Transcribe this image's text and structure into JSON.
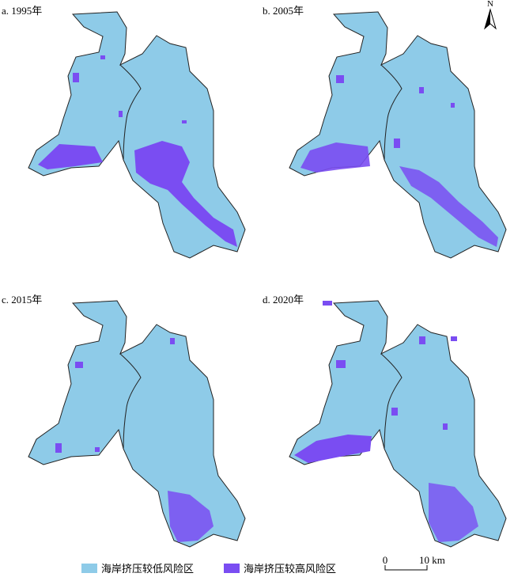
{
  "panels": [
    {
      "label": "a. 1995年"
    },
    {
      "label": "b. 2005年"
    },
    {
      "label": "c. 2015年"
    },
    {
      "label": "d. 2020年"
    }
  ],
  "legend": [
    {
      "label": "海岸挤压较低风险区",
      "color": "#8ecbe8"
    },
    {
      "label": "海岸挤压较高风险区",
      "color": "#7a4df2"
    }
  ],
  "scale_bar": {
    "labels": [
      "0",
      "10 km"
    ]
  },
  "north_arrow": {
    "label": "N"
  }
}
